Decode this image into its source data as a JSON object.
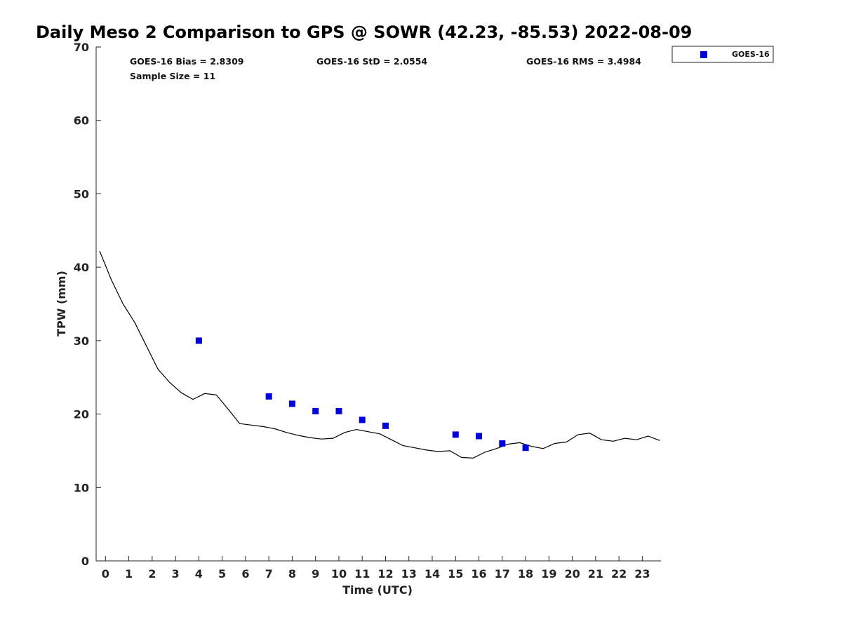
{
  "chart_data": {
    "type": "line",
    "title": "Daily Meso 2 Comparison to GPS @ SOWR (42.23, -85.53) 2022-08-09",
    "xlabel": "Time (UTC)",
    "ylabel": "TPW (mm)",
    "xlim": [
      -0.4,
      23.8
    ],
    "ylim": [
      0,
      70
    ],
    "xticks": [
      "0",
      "1",
      "2",
      "3",
      "4",
      "5",
      "6",
      "7",
      "8",
      "9",
      "10",
      "11",
      "12",
      "13",
      "14",
      "15",
      "16",
      "17",
      "18",
      "19",
      "20",
      "21",
      "22",
      "23"
    ],
    "yticks": [
      "0",
      "10",
      "20",
      "30",
      "40",
      "50",
      "60",
      "70"
    ],
    "grid": false,
    "legend_position": "top-right",
    "stats": {
      "bias": "GOES-16 Bias = 2.8309",
      "std": "GOES-16 StD = 2.0554",
      "rms": "GOES-16 RMS = 3.4984",
      "sample": "Sample Size = 11"
    },
    "series": [
      {
        "kind": "line",
        "color": "#000000",
        "x": [
          -0.25,
          0.25,
          0.75,
          1.25,
          1.75,
          2.25,
          2.75,
          3.25,
          3.75,
          4.25,
          4.75,
          5.25,
          5.75,
          6.25,
          6.75,
          7.25,
          7.75,
          8.25,
          8.75,
          9.25,
          9.75,
          10.25,
          10.75,
          11.25,
          11.75,
          12.25,
          12.75,
          13.25,
          13.75,
          14.25,
          14.75,
          15.25,
          15.75,
          16.25,
          16.75,
          17.25,
          17.75,
          18.25,
          18.75,
          19.25,
          19.75,
          20.25,
          20.75,
          21.25,
          21.75,
          22.25,
          22.75,
          23.25,
          23.75
        ],
        "values": [
          42.2,
          38.3,
          35.0,
          32.5,
          29.3,
          26.1,
          24.3,
          22.9,
          22.0,
          22.8,
          22.6,
          20.7,
          18.7,
          18.5,
          18.3,
          18.0,
          17.5,
          17.1,
          16.8,
          16.6,
          16.7,
          17.5,
          17.9,
          17.6,
          17.3,
          16.5,
          15.7,
          15.4,
          15.1,
          14.9,
          15.0,
          14.1,
          14.0,
          14.8,
          15.3,
          15.9,
          16.1,
          15.6,
          15.3,
          16.0,
          16.2,
          17.2,
          17.4,
          16.5,
          16.3,
          16.7,
          16.5,
          17.0,
          16.4
        ]
      },
      {
        "name": "GOES-16",
        "kind": "scatter",
        "color": "#0000dd",
        "x": [
          4,
          7,
          8,
          9,
          10,
          11,
          12,
          15,
          16,
          17,
          18
        ],
        "values": [
          30.0,
          22.4,
          21.4,
          20.4,
          20.4,
          19.2,
          18.4,
          17.2,
          17.0,
          16.0,
          15.4
        ]
      }
    ]
  }
}
